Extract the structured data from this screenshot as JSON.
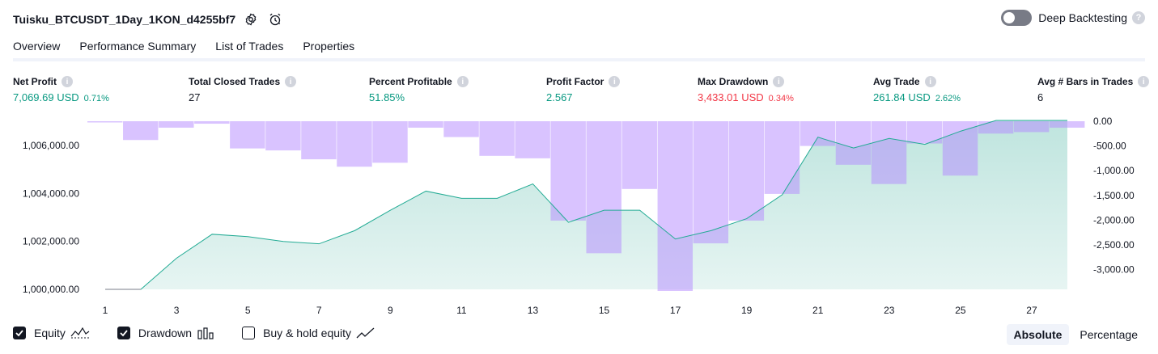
{
  "header": {
    "strategy_name": "Tuisku_BTCUSDT_1Day_1KON_d4255bf7",
    "settings_icon": "gear-icon",
    "alert_icon": "alarm-clock-icon",
    "deep_backtesting_label": "Deep Backtesting",
    "deep_backtesting_enabled": false,
    "help_mark": "?"
  },
  "tabs": [
    {
      "label": "Overview",
      "active": true
    },
    {
      "label": "Performance Summary",
      "active": false
    },
    {
      "label": "List of Trades",
      "active": false
    },
    {
      "label": "Properties",
      "active": false
    }
  ],
  "info_mark": "i",
  "stats": [
    {
      "label": "Net Profit",
      "value": "7,069.69 USD",
      "pct": "0.71%",
      "color": "green"
    },
    {
      "label": "Total Closed Trades",
      "value": "27",
      "pct": "",
      "color": "dark"
    },
    {
      "label": "Percent Profitable",
      "value": "51.85%",
      "pct": "",
      "color": "green"
    },
    {
      "label": "Profit Factor",
      "value": "2.567",
      "pct": "",
      "color": "green"
    },
    {
      "label": "Max Drawdown",
      "value": "3,433.01 USD",
      "pct": "0.34%",
      "color": "red"
    },
    {
      "label": "Avg Trade",
      "value": "261.84 USD",
      "pct": "2.62%",
      "color": "green"
    },
    {
      "label": "Avg # Bars in Trades",
      "value": "6",
      "pct": "",
      "color": "dark"
    }
  ],
  "colors": {
    "equity_line": "#22ab94",
    "equity_fill": "#089981",
    "drawdown_bar": "#b388ff",
    "positive": "#089981",
    "negative": "#f23645"
  },
  "chart_data": {
    "type": "line",
    "x": [
      1,
      2,
      3,
      4,
      5,
      6,
      7,
      8,
      9,
      10,
      11,
      12,
      13,
      14,
      15,
      16,
      17,
      18,
      19,
      20,
      21,
      22,
      23,
      24,
      25,
      26,
      27,
      28
    ],
    "x_tick_labels": [
      "1",
      "3",
      "5",
      "7",
      "9",
      "11",
      "13",
      "15",
      "17",
      "19",
      "21",
      "23",
      "25",
      "27"
    ],
    "series": [
      {
        "name": "Equity",
        "type": "area",
        "axis": "left",
        "values": [
          1000000,
          1000000,
          1001300,
          1002300,
          1002200,
          1002000,
          1001900,
          1002450,
          1003300,
          1004100,
          1003800,
          1003800,
          1004400,
          1002800,
          1003300,
          1003300,
          1002100,
          1002450,
          1002950,
          1003950,
          1006350,
          1005900,
          1006300,
          1006050,
          1006600,
          1007050,
          1007050,
          1007050
        ]
      },
      {
        "name": "Drawdown",
        "type": "bar",
        "axis": "right",
        "values": [
          0,
          -380,
          -130,
          -50,
          -550,
          -590,
          -770,
          -920,
          -840,
          -130,
          -320,
          -700,
          -750,
          -2010,
          -2670,
          -1370,
          -3433,
          -2470,
          -2010,
          -1470,
          -500,
          -880,
          -1270,
          -450,
          -1100,
          -250,
          -220,
          -130
        ]
      }
    ],
    "y_left": {
      "ticks": [
        "1,000,000.00",
        "1,002,000.00",
        "1,004,000.00",
        "1,006,000.00"
      ],
      "ylim": [
        1000000,
        1007050
      ]
    },
    "y_right": {
      "ticks": [
        "0.00",
        "-500.00",
        "-1,000.00",
        "-1,500.00",
        "-2,000.00",
        "-2,500.00",
        "-3,000.00"
      ],
      "ylim": [
        -3433,
        0
      ]
    }
  },
  "legend": [
    {
      "label": "Equity",
      "checked": true,
      "icon": "equity-line-icon"
    },
    {
      "label": "Drawdown",
      "checked": true,
      "icon": "drawdown-bars-icon"
    },
    {
      "label": "Buy & hold equity",
      "checked": false,
      "icon": "buy-hold-line-icon"
    }
  ],
  "modes": [
    {
      "label": "Absolute",
      "active": true
    },
    {
      "label": "Percentage",
      "active": false
    }
  ]
}
